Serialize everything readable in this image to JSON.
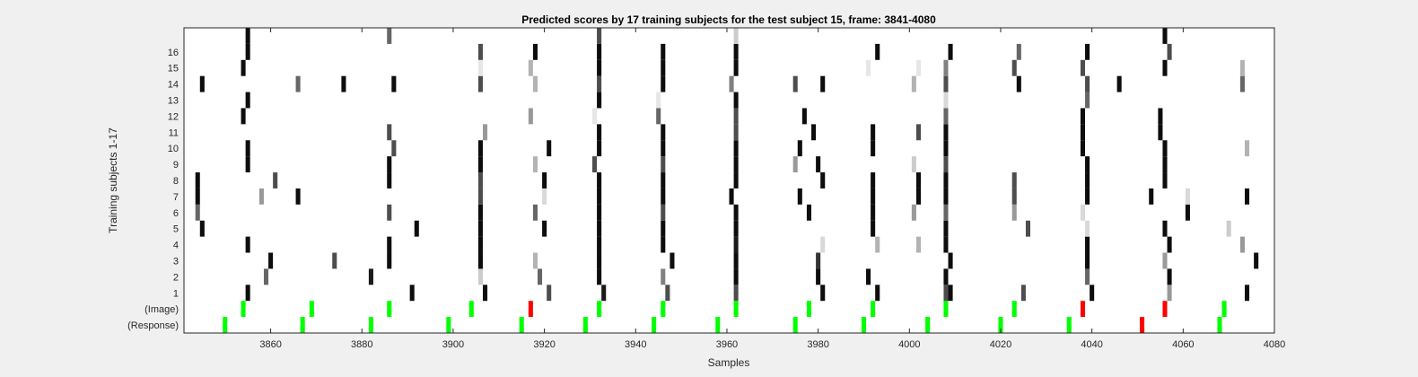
{
  "chart_data": {
    "type": "heatmap",
    "title": "Predicted scores by 17 training subjects for the test subject 15, frame: 3841-4080",
    "xlabel": "Samples",
    "ylabel": "Training subjects 1-17",
    "xlim": [
      3841,
      4080
    ],
    "xticks": [
      3860,
      3880,
      3900,
      3920,
      3940,
      3960,
      3980,
      4000,
      4020,
      4040,
      4060,
      4080
    ],
    "rows": [
      "(Response)",
      "(Image)",
      "1",
      "2",
      "3",
      "4",
      "5",
      "6",
      "7",
      "8",
      "9",
      "10",
      "11",
      "12",
      "13",
      "14",
      "15",
      "16",
      ""
    ],
    "colors": {
      "correct": "#00ff00",
      "wrong": "#ff0000",
      "background": "#ffffff"
    },
    "response_marks": [
      {
        "x": 3850,
        "status": "correct"
      },
      {
        "x": 3867,
        "status": "correct"
      },
      {
        "x": 3882,
        "status": "correct"
      },
      {
        "x": 3899,
        "status": "correct"
      },
      {
        "x": 3915,
        "status": "correct"
      },
      {
        "x": 3929,
        "status": "correct"
      },
      {
        "x": 3944,
        "status": "correct"
      },
      {
        "x": 3958,
        "status": "correct"
      },
      {
        "x": 3975,
        "status": "correct"
      },
      {
        "x": 3990,
        "status": "correct"
      },
      {
        "x": 4004,
        "status": "correct"
      },
      {
        "x": 4020,
        "status": "correct"
      },
      {
        "x": 4035,
        "status": "correct"
      },
      {
        "x": 4051,
        "status": "wrong"
      },
      {
        "x": 4068,
        "status": "correct"
      }
    ],
    "image_marks": [
      {
        "x": 3854,
        "status": "correct"
      },
      {
        "x": 3869,
        "status": "correct"
      },
      {
        "x": 3886,
        "status": "correct"
      },
      {
        "x": 3904,
        "status": "correct"
      },
      {
        "x": 3917,
        "status": "wrong"
      },
      {
        "x": 3932,
        "status": "correct"
      },
      {
        "x": 3946,
        "status": "correct"
      },
      {
        "x": 3962,
        "status": "correct"
      },
      {
        "x": 3978,
        "status": "correct"
      },
      {
        "x": 3992,
        "status": "correct"
      },
      {
        "x": 4008,
        "status": "correct"
      },
      {
        "x": 4023,
        "status": "correct"
      },
      {
        "x": 4038,
        "status": "wrong"
      },
      {
        "x": 4056,
        "status": "wrong"
      },
      {
        "x": 4069,
        "status": "correct"
      }
    ],
    "subject_marks": [
      {
        "row": "1",
        "cells": [
          [
            3855,
            0.05
          ],
          [
            3891,
            0.05
          ],
          [
            3907,
            0.05
          ],
          [
            3921,
            0.3
          ],
          [
            3933,
            0.1
          ],
          [
            3947,
            0.3
          ],
          [
            3962,
            0.3
          ],
          [
            3981,
            0.05
          ],
          [
            3993,
            0.05
          ],
          [
            4008,
            0.3
          ],
          [
            4009,
            0.05
          ],
          [
            4025,
            0.3
          ],
          [
            4040,
            0.05
          ],
          [
            4057,
            0.6
          ],
          [
            4074,
            0.05
          ]
        ]
      },
      {
        "row": "2",
        "cells": [
          [
            3859,
            0.4
          ],
          [
            3882,
            0.1
          ],
          [
            3906,
            0.8
          ],
          [
            3919,
            0.4
          ],
          [
            3932,
            0.05
          ],
          [
            3946,
            0.5
          ],
          [
            3962,
            0.05
          ],
          [
            3980,
            0.05
          ],
          [
            3991,
            0.05
          ],
          [
            4008,
            0.05
          ],
          [
            4039,
            0.4
          ],
          [
            4057,
            0.05
          ]
        ]
      },
      {
        "row": "3",
        "cells": [
          [
            3860,
            0.05
          ],
          [
            3874,
            0.3
          ],
          [
            3886,
            0.05
          ],
          [
            3906,
            0.05
          ],
          [
            3918,
            0.7
          ],
          [
            3932,
            0.05
          ],
          [
            3948,
            0.05
          ],
          [
            3962,
            0.05
          ],
          [
            3980,
            0.2
          ],
          [
            4009,
            0.05
          ],
          [
            4039,
            0.05
          ],
          [
            4056,
            0.6
          ],
          [
            4076,
            0.05
          ]
        ]
      },
      {
        "row": "4",
        "cells": [
          [
            3855,
            0.05
          ],
          [
            3886,
            0.05
          ],
          [
            3906,
            0.05
          ],
          [
            3932,
            0.05
          ],
          [
            3946,
            0.05
          ],
          [
            3962,
            0.1
          ],
          [
            3981,
            0.85
          ],
          [
            3993,
            0.7
          ],
          [
            4002,
            0.7
          ],
          [
            4008,
            0.05
          ],
          [
            4039,
            0.05
          ],
          [
            4057,
            0.05
          ],
          [
            4073,
            0.6
          ]
        ]
      },
      {
        "row": "5",
        "cells": [
          [
            3845,
            0.05
          ],
          [
            3892,
            0.05
          ],
          [
            3906,
            0.05
          ],
          [
            3920,
            0.05
          ],
          [
            3932,
            0.05
          ],
          [
            3946,
            0.05
          ],
          [
            3962,
            0.05
          ],
          [
            3992,
            0.05
          ],
          [
            4008,
            0.05
          ],
          [
            4026,
            0.3
          ],
          [
            4039,
            0.85
          ],
          [
            4056,
            0.05
          ],
          [
            4070,
            0.8
          ]
        ]
      },
      {
        "row": "6",
        "cells": [
          [
            3844,
            0.4
          ],
          [
            3886,
            0.3
          ],
          [
            3906,
            0.05
          ],
          [
            3918,
            0.4
          ],
          [
            3932,
            0.05
          ],
          [
            3946,
            0.3
          ],
          [
            3962,
            0.05
          ],
          [
            3978,
            0.05
          ],
          [
            3992,
            0.05
          ],
          [
            4001,
            0.6
          ],
          [
            4008,
            0.4
          ],
          [
            4023,
            0.6
          ],
          [
            4038,
            0.85
          ],
          [
            4061,
            0.05
          ]
        ]
      },
      {
        "row": "7",
        "cells": [
          [
            3844,
            0.05
          ],
          [
            3858,
            0.6
          ],
          [
            3866,
            0.05
          ],
          [
            3906,
            0.3
          ],
          [
            3920,
            0.85
          ],
          [
            3932,
            0.05
          ],
          [
            3946,
            0.05
          ],
          [
            3961,
            0.05
          ],
          [
            3976,
            0.05
          ],
          [
            3992,
            0.05
          ],
          [
            4002,
            0.05
          ],
          [
            4008,
            0.05
          ],
          [
            4023,
            0.3
          ],
          [
            4039,
            0.05
          ],
          [
            4053,
            0.05
          ],
          [
            4061,
            0.85
          ],
          [
            4074,
            0.05
          ]
        ]
      },
      {
        "row": "8",
        "cells": [
          [
            3844,
            0.05
          ],
          [
            3861,
            0.3
          ],
          [
            3886,
            0.05
          ],
          [
            3906,
            0.3
          ],
          [
            3920,
            0.05
          ],
          [
            3932,
            0.05
          ],
          [
            3946,
            0.05
          ],
          [
            3962,
            0.05
          ],
          [
            3981,
            0.05
          ],
          [
            3992,
            0.05
          ],
          [
            4002,
            0.05
          ],
          [
            4008,
            0.05
          ],
          [
            4023,
            0.3
          ],
          [
            4039,
            0.05
          ],
          [
            4056,
            0.05
          ]
        ]
      },
      {
        "row": "9",
        "cells": [
          [
            3855,
            0.05
          ],
          [
            3886,
            0.05
          ],
          [
            3906,
            0.05
          ],
          [
            3918,
            0.7
          ],
          [
            3931,
            0.3
          ],
          [
            3946,
            0.3
          ],
          [
            3962,
            0.05
          ],
          [
            3975,
            0.6
          ],
          [
            3980,
            0.05
          ],
          [
            4001,
            0.8
          ],
          [
            4008,
            0.3
          ],
          [
            4039,
            0.05
          ],
          [
            4056,
            0.05
          ]
        ]
      },
      {
        "row": "10",
        "cells": [
          [
            3855,
            0.05
          ],
          [
            3887,
            0.3
          ],
          [
            3906,
            0.05
          ],
          [
            3921,
            0.05
          ],
          [
            3932,
            0.05
          ],
          [
            3946,
            0.05
          ],
          [
            3962,
            0.05
          ],
          [
            3976,
            0.05
          ],
          [
            3992,
            0.05
          ],
          [
            4008,
            0.05
          ],
          [
            4038,
            0.05
          ],
          [
            4056,
            0.05
          ],
          [
            4074,
            0.7
          ]
        ]
      },
      {
        "row": "11",
        "cells": [
          [
            3886,
            0.3
          ],
          [
            3907,
            0.6
          ],
          [
            3932,
            0.05
          ],
          [
            3946,
            0.05
          ],
          [
            3962,
            0.3
          ],
          [
            3979,
            0.05
          ],
          [
            3992,
            0.05
          ],
          [
            4002,
            0.3
          ],
          [
            4008,
            0.05
          ],
          [
            4038,
            0.05
          ],
          [
            4055,
            0.05
          ]
        ]
      },
      {
        "row": "12",
        "cells": [
          [
            3854,
            0.05
          ],
          [
            3917,
            0.6
          ],
          [
            3931,
            0.9
          ],
          [
            3945,
            0.4
          ],
          [
            3962,
            0.3
          ],
          [
            3977,
            0.05
          ],
          [
            4008,
            0.4
          ],
          [
            4038,
            0.05
          ],
          [
            4055,
            0.05
          ]
        ]
      },
      {
        "row": "13",
        "cells": [
          [
            3855,
            0.05
          ],
          [
            3932,
            0.05
          ],
          [
            3945,
            0.9
          ],
          [
            3962,
            0.05
          ],
          [
            4008,
            0.85
          ],
          [
            4039,
            0.4
          ]
        ]
      },
      {
        "row": "14",
        "cells": [
          [
            3845,
            0.05
          ],
          [
            3866,
            0.4
          ],
          [
            3876,
            0.05
          ],
          [
            3887,
            0.05
          ],
          [
            3906,
            0.3
          ],
          [
            3918,
            0.7
          ],
          [
            3932,
            0.3
          ],
          [
            3946,
            0.05
          ],
          [
            3961,
            0.5
          ],
          [
            3975,
            0.3
          ],
          [
            3981,
            0.05
          ],
          [
            4001,
            0.7
          ],
          [
            4008,
            0.3
          ],
          [
            4024,
            0.05
          ],
          [
            4039,
            0.3
          ],
          [
            4046,
            0.05
          ],
          [
            4073,
            0.4
          ]
        ]
      },
      {
        "row": "15",
        "cells": [
          [
            3854,
            0.05
          ],
          [
            3906,
            0.9
          ],
          [
            3917,
            0.7
          ],
          [
            3932,
            0.05
          ],
          [
            3946,
            0.05
          ],
          [
            3962,
            0.05
          ],
          [
            3991,
            0.9
          ],
          [
            4002,
            0.9
          ],
          [
            4008,
            0.5
          ],
          [
            4023,
            0.3
          ],
          [
            4038,
            0.3
          ],
          [
            4056,
            0.05
          ],
          [
            4073,
            0.7
          ]
        ]
      },
      {
        "row": "16",
        "cells": [
          [
            3855,
            0.05
          ],
          [
            3906,
            0.3
          ],
          [
            3918,
            0.05
          ],
          [
            3932,
            0.05
          ],
          [
            3946,
            0.05
          ],
          [
            3962,
            0.05
          ],
          [
            3993,
            0.05
          ],
          [
            4009,
            0.05
          ],
          [
            4024,
            0.4
          ],
          [
            4039,
            0.05
          ],
          [
            4057,
            0.3
          ]
        ]
      },
      {
        "row": "",
        "cells": [
          [
            3855,
            0.05
          ],
          [
            3886,
            0.4
          ],
          [
            3932,
            0.3
          ],
          [
            3962,
            0.8
          ],
          [
            4056,
            0.05
          ]
        ]
      }
    ]
  }
}
